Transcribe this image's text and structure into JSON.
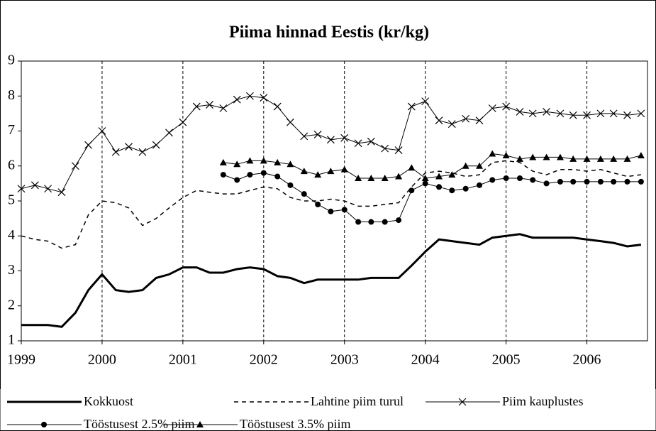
{
  "chart_data": {
    "type": "line",
    "title": "Piima hinnad Eestis (kr/kg)",
    "x": [
      1999,
      1999.17,
      1999.33,
      1999.5,
      1999.67,
      1999.83,
      2000,
      2000.17,
      2000.33,
      2000.5,
      2000.67,
      2000.83,
      2001,
      2001.17,
      2001.33,
      2001.5,
      2001.67,
      2001.83,
      2002,
      2002.17,
      2002.33,
      2002.5,
      2002.67,
      2002.83,
      2003,
      2003.17,
      2003.33,
      2003.5,
      2003.67,
      2003.83,
      2004,
      2004.17,
      2004.33,
      2004.5,
      2004.67,
      2004.83,
      2005,
      2005.17,
      2005.33,
      2005.5,
      2005.67,
      2005.83,
      2006,
      2006.17,
      2006.33,
      2006.5,
      2006.67
    ],
    "series": [
      {
        "name": "Kokkuost",
        "color": "#000000",
        "line_width": 3,
        "dash": "solid",
        "marker": "none",
        "values": [
          1.45,
          1.45,
          1.45,
          1.4,
          1.8,
          2.45,
          2.9,
          2.45,
          2.4,
          2.45,
          2.8,
          2.9,
          3.1,
          3.1,
          2.95,
          2.95,
          3.05,
          3.1,
          3.05,
          2.85,
          2.8,
          2.65,
          2.75,
          2.75,
          2.75,
          2.75,
          2.8,
          2.8,
          2.8,
          3.15,
          3.55,
          3.9,
          3.85,
          3.8,
          3.75,
          3.95,
          4.0,
          4.05,
          3.95,
          3.95,
          3.95,
          3.95,
          3.9,
          3.85,
          3.8,
          3.7,
          3.75
        ]
      },
      {
        "name": "Lahtine piim turul",
        "color": "#000000",
        "line_width": 1.5,
        "dash": "dashed",
        "marker": "none",
        "values": [
          4.0,
          3.9,
          3.85,
          3.65,
          3.75,
          4.6,
          5.0,
          4.95,
          4.8,
          4.3,
          4.5,
          4.8,
          5.1,
          5.3,
          5.25,
          5.2,
          5.2,
          5.3,
          5.4,
          5.35,
          5.1,
          5.0,
          5.0,
          5.05,
          5.0,
          4.85,
          4.85,
          4.9,
          4.95,
          5.4,
          5.8,
          5.85,
          5.8,
          5.7,
          5.75,
          6.1,
          6.15,
          6.1,
          5.85,
          5.75,
          5.9,
          5.9,
          5.85,
          5.9,
          5.8,
          5.7,
          5.75
        ]
      },
      {
        "name": "Piim kauplustes",
        "color": "#000000",
        "line_width": 1,
        "dash": "solid",
        "marker": "x",
        "values": [
          5.35,
          5.45,
          5.35,
          5.25,
          6.0,
          6.6,
          7.0,
          6.4,
          6.55,
          6.4,
          6.6,
          6.95,
          7.25,
          7.7,
          7.75,
          7.65,
          7.9,
          8.0,
          7.95,
          7.7,
          7.25,
          6.85,
          6.9,
          6.75,
          6.8,
          6.65,
          6.7,
          6.5,
          6.45,
          7.7,
          7.85,
          7.3,
          7.2,
          7.35,
          7.3,
          7.65,
          7.7,
          7.55,
          7.5,
          7.55,
          7.5,
          7.45,
          7.45,
          7.5,
          7.5,
          7.45,
          7.5
        ]
      },
      {
        "name": "Tööstusest 2.5% piim",
        "color": "#000000",
        "line_width": 1,
        "dash": "solid",
        "marker": "circle",
        "values": [
          null,
          null,
          null,
          null,
          null,
          null,
          null,
          null,
          null,
          null,
          null,
          null,
          null,
          null,
          null,
          5.75,
          5.6,
          5.75,
          5.8,
          5.7,
          5.45,
          5.2,
          4.9,
          4.7,
          4.75,
          4.4,
          4.4,
          4.4,
          4.45,
          5.3,
          5.5,
          5.4,
          5.3,
          5.35,
          5.45,
          5.6,
          5.65,
          5.65,
          5.6,
          5.5,
          5.55,
          5.55,
          5.55,
          5.55,
          5.55,
          5.55,
          5.55
        ]
      },
      {
        "name": "Tööstusest 3.5% piim",
        "color": "#000000",
        "line_width": 1,
        "dash": "solid",
        "marker": "triangle",
        "values": [
          null,
          null,
          null,
          null,
          null,
          null,
          null,
          null,
          null,
          null,
          null,
          null,
          null,
          null,
          null,
          6.1,
          6.05,
          6.15,
          6.15,
          6.1,
          6.05,
          5.85,
          5.75,
          5.85,
          5.9,
          5.65,
          5.65,
          5.65,
          5.7,
          5.95,
          5.65,
          5.7,
          5.75,
          6.0,
          6.0,
          6.35,
          6.3,
          6.2,
          6.25,
          6.25,
          6.25,
          6.2,
          6.2,
          6.2,
          6.2,
          6.2,
          6.3
        ]
      }
    ],
    "xlim": [
      1999,
      2006.75
    ],
    "xticks": [
      1999,
      2000,
      2001,
      2002,
      2003,
      2004,
      2005,
      2006
    ],
    "ylim": [
      1,
      9
    ],
    "yticks": [
      1,
      2,
      3,
      4,
      5,
      6,
      7,
      8,
      9
    ],
    "grid": "x",
    "legend": "bottom"
  }
}
